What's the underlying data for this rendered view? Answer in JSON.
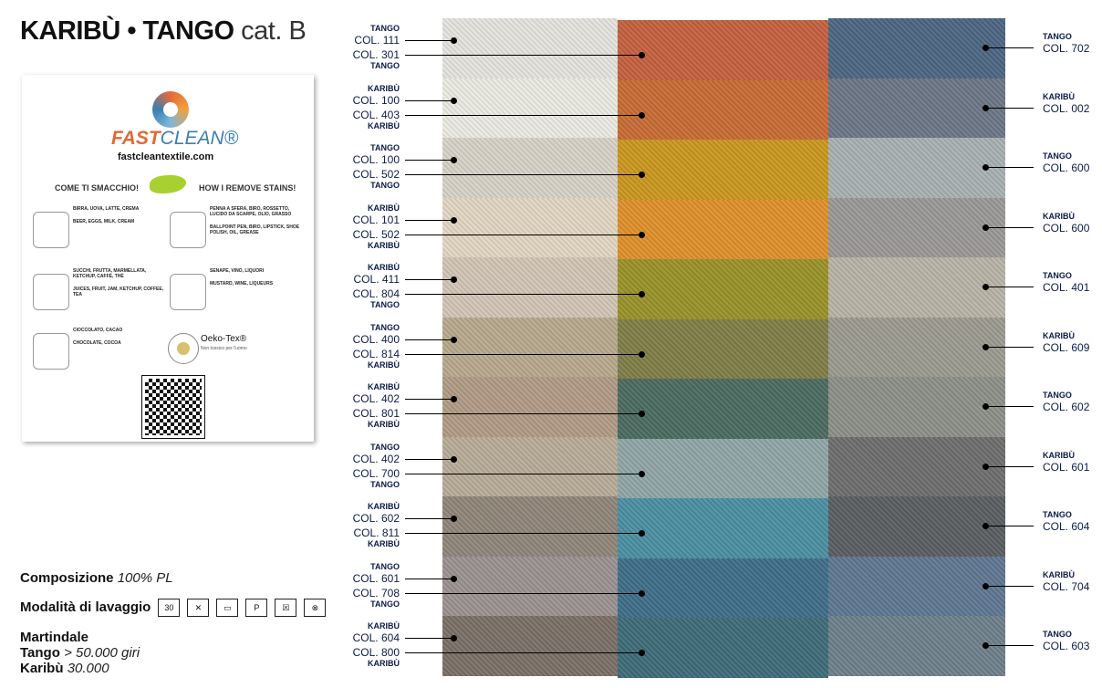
{
  "title": {
    "main": "KARIBÙ • TANGO",
    "cat": "cat. B"
  },
  "card": {
    "brand1": "FAST",
    "brand2": "CLEAN®",
    "url": "fastcleantextile.com",
    "head_it": "COME TI SMACCHIO!",
    "head_en": "HOW I REMOVE STAINS!",
    "items": [
      {
        "it": "BIRRA, UOVA, LATTE, CREMA",
        "en": "BEER, EGGS, MILK, CREAM",
        "icon": "drinks-eggs-icon"
      },
      {
        "it": "PENNA A SFERA, BIRO, ROSSETTO, LUCIDO DA SCARPE, OLIO, GRASSO",
        "en": "BALLPOINT PEN, BIRO, LIPSTICK, SHOE POLISH, OIL, GREASE",
        "icon": "pens-icon"
      },
      {
        "it": "SUCCHI, FRUTTA, MARMELLATA, KETCHUP, CAFFÈ, THÈ",
        "en": "JUICES, FRUIT, JAM, KETCHUP, COFFEE, TEA",
        "icon": "coffee-icon"
      },
      {
        "it": "SENAPE, VINO, LIQUORI",
        "en": "MUSTARD, WINE, LIQUEURS",
        "icon": "bottles-icon"
      },
      {
        "it": "CIOCCOLATO, CACAO",
        "en": "CHOCOLATE, COCOA",
        "icon": "cake-icon"
      }
    ],
    "oeko": "Oeko-Tex®",
    "oeko_sub": "Non tossico per l'uomo"
  },
  "specs": {
    "comp_label": "Composizione",
    "comp_value": "100% PL",
    "wash_label": "Modalità di lavaggio",
    "wash_icons": [
      "30",
      "✕",
      "▭",
      "P",
      "☒",
      "⊗"
    ],
    "martindale": "Martindale",
    "tango_label": "Tango",
    "tango_value": "> 50.000 giri",
    "karibu_label": "Karibù",
    "karibu_value": "30.000"
  },
  "rows": [
    {
      "l1": [
        "TANGO",
        "COL. 111",
        "#e6e4dd"
      ],
      "l2": [
        "TANGO",
        "COL. 301",
        "#c6603f"
      ],
      "r": [
        "TANGO",
        "COL. 702",
        "#4c6682"
      ]
    },
    {
      "l1": [
        "KARIBÙ",
        "COL. 100",
        "#ecebe3"
      ],
      "l2": [
        "KARIBÙ",
        "COL. 403",
        "#c96b34"
      ],
      "r": [
        "KARIBÙ",
        "COL. 002",
        "#6d7686"
      ]
    },
    {
      "l1": [
        "TANGO",
        "COL. 100",
        "#d8d3c8"
      ],
      "l2": [
        "TANGO",
        "COL. 502",
        "#c9981d"
      ],
      "r": [
        "TANGO",
        "COL. 600",
        "#a9b1b2"
      ]
    },
    {
      "l1": [
        "KARIBÙ",
        "COL. 101",
        "#e3d7c2"
      ],
      "l2": [
        "KARIBÙ",
        "COL. 502",
        "#e0902b"
      ],
      "r": [
        "KARIBÙ",
        "COL. 600",
        "#9b9997"
      ]
    },
    {
      "l1": [
        "KARIBÙ",
        "COL. 411",
        "#d3c6b6"
      ],
      "l2": [
        "TANGO",
        "COL. 804",
        "#9a9229"
      ],
      "r": [
        "TANGO",
        "COL. 401",
        "#b8b4a6"
      ]
    },
    {
      "l1": [
        "TANGO",
        "COL. 400",
        "#b9a98d"
      ],
      "l2": [
        "KARIBÙ",
        "COL. 814",
        "#807e46"
      ],
      "r": [
        "KARIBÙ",
        "COL. 609",
        "#9c9b91"
      ]
    },
    {
      "l1": [
        "KARIBÙ",
        "COL. 402",
        "#b19b86"
      ],
      "l2": [
        "KARIBÙ",
        "COL. 801",
        "#4b6b5f"
      ],
      "r": [
        "TANGO",
        "COL. 602",
        "#8d8f89"
      ]
    },
    {
      "l1": [
        "TANGO",
        "COL. 402",
        "#b9ac99"
      ],
      "l2": [
        "TANGO",
        "COL. 700",
        "#90a6a7"
      ],
      "r": [
        "KARIBÙ",
        "COL. 601",
        "#6f6e6f"
      ]
    },
    {
      "l1": [
        "KARIBÙ",
        "COL. 602",
        "#908679"
      ],
      "l2": [
        "KARIBÙ",
        "COL. 811",
        "#4b8fa1"
      ],
      "r": [
        "TANGO",
        "COL. 604",
        "#5b5e61"
      ]
    },
    {
      "l1": [
        "TANGO",
        "COL. 601",
        "#9b9191"
      ],
      "l2": [
        "TANGO",
        "COL. 708",
        "#3e6f89"
      ],
      "r": [
        "KARIBÙ",
        "COL. 704",
        "#5f7691"
      ]
    },
    {
      "l1": [
        "KARIBÙ",
        "COL. 604",
        "#7b7067"
      ],
      "l2": [
        "KARIBÙ",
        "COL. 800",
        "#3f6b79"
      ],
      "r": [
        "TANGO",
        "COL. 603",
        "#6e808b"
      ]
    }
  ]
}
